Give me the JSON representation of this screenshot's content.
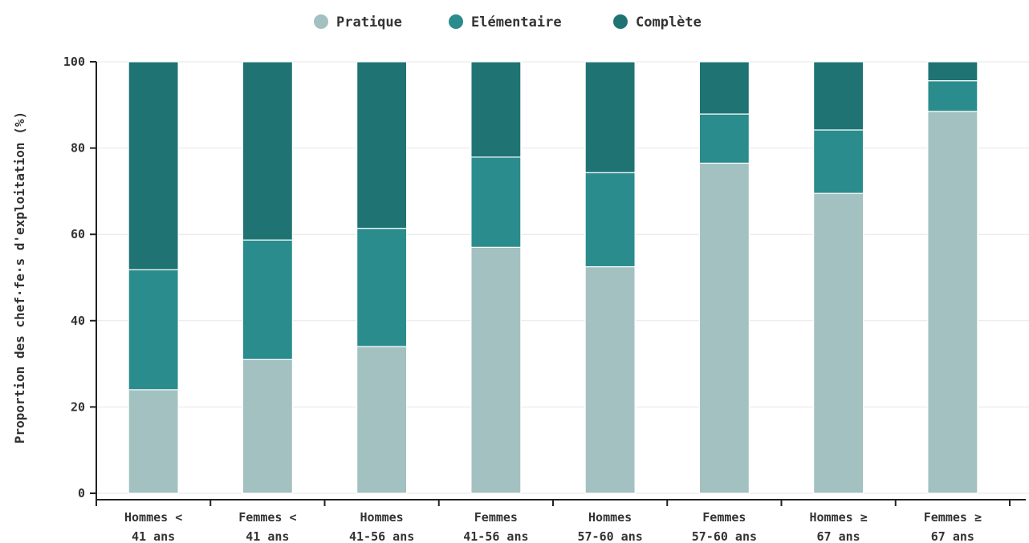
{
  "chart_data": {
    "type": "bar",
    "stacked": true,
    "title": "",
    "xlabel": "",
    "ylabel": "Proportion des chef·fe·s d'exploitation (%)",
    "ylim": [
      0,
      100
    ],
    "yticks": [
      0,
      20,
      40,
      60,
      80,
      100
    ],
    "grid": "horizontal",
    "legend_position": "top",
    "categories": [
      [
        "Hommes <",
        "41 ans"
      ],
      [
        "Femmes <",
        "41 ans"
      ],
      [
        "Hommes",
        "41-56 ans"
      ],
      [
        "Femmes",
        "41-56 ans"
      ],
      [
        "Hommes",
        "57-60 ans"
      ],
      [
        "Femmes",
        "57-60 ans"
      ],
      [
        "Hommes ≥",
        "67 ans"
      ],
      [
        "Femmes ≥",
        "67 ans"
      ]
    ],
    "series": [
      {
        "name": "Pratique",
        "color": "#a3c1c0",
        "values": [
          24,
          31,
          34,
          57,
          52.5,
          76.5,
          69.5,
          88.5
        ]
      },
      {
        "name": "Elémentaire",
        "color": "#2a8c8c",
        "values": [
          27.8,
          27.7,
          27.4,
          20.9,
          21.8,
          11.4,
          14.7,
          7.1
        ]
      },
      {
        "name": "Complète",
        "color": "#207373",
        "values": [
          48.2,
          41.3,
          38.6,
          22.1,
          25.7,
          12.1,
          15.8,
          4.4
        ]
      }
    ]
  }
}
